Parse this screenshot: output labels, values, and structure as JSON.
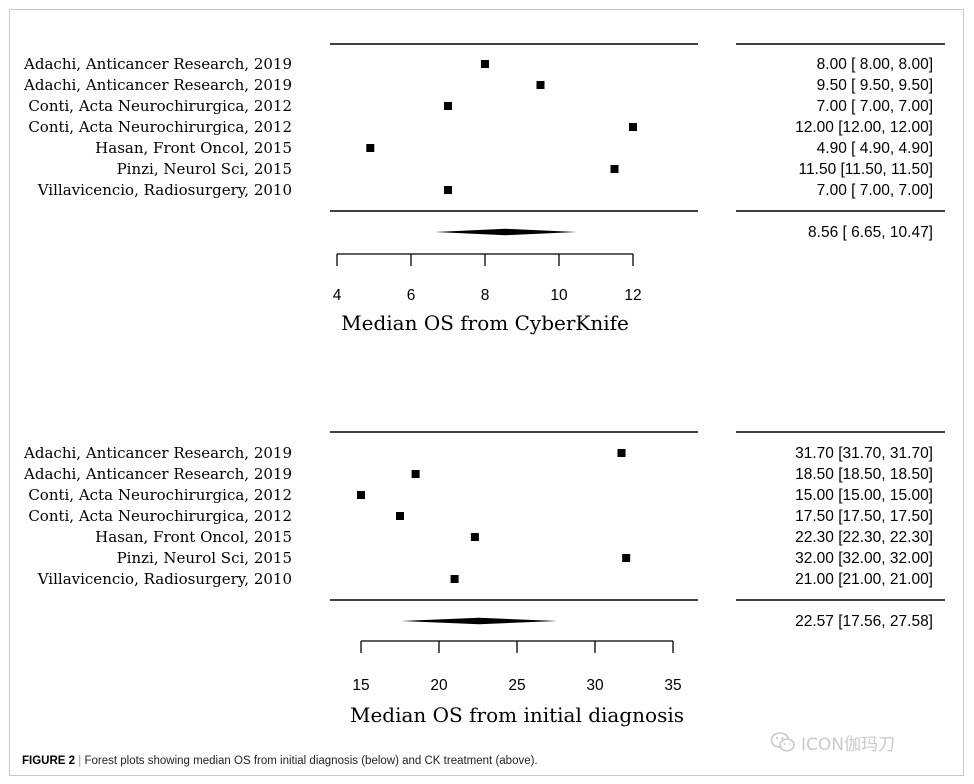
{
  "chart_data": [
    {
      "type": "forest",
      "xlabel": "Median OS from CyberKnife",
      "xlim": [
        4,
        12
      ],
      "xticks": [
        4,
        6,
        8,
        10,
        12
      ],
      "studies": [
        {
          "label": "Adachi,  Anticancer Research, 2019",
          "value": 8.0,
          "ci": [
            8.0,
            8.0
          ],
          "text": "8.00 [ 8.00,  8.00]"
        },
        {
          "label": "Adachi,  Anticancer Research, 2019",
          "value": 9.5,
          "ci": [
            9.5,
            9.5
          ],
          "text": "9.50 [ 9.50,  9.50]"
        },
        {
          "label": "Conti, Acta Neurochirurgica, 2012",
          "value": 7.0,
          "ci": [
            7.0,
            7.0
          ],
          "text": "7.00 [ 7.00,  7.00]"
        },
        {
          "label": "Conti, Acta Neurochirurgica, 2012",
          "value": 12.0,
          "ci": [
            12.0,
            12.0
          ],
          "text": "12.00 [12.00, 12.00]"
        },
        {
          "label": "Hasan,  Front Oncol, 2015",
          "value": 4.9,
          "ci": [
            4.9,
            4.9
          ],
          "text": "4.90 [ 4.90,  4.90]"
        },
        {
          "label": "Pinzi, Neurol Sci, 2015",
          "value": 11.5,
          "ci": [
            11.5,
            11.5
          ],
          "text": "11.50 [11.50, 11.50]"
        },
        {
          "label": "Villavicencio, Radiosurgery, 2010",
          "value": 7.0,
          "ci": [
            7.0,
            7.0
          ],
          "text": "7.00 [ 7.00,  7.00]"
        }
      ],
      "pooled": {
        "value": 8.56,
        "ci": [
          6.65,
          10.47
        ],
        "text": "8.56 [ 6.65, 10.47]"
      }
    },
    {
      "type": "forest",
      "xlabel": "Median OS from initial diagnosis",
      "xlim": [
        15,
        35
      ],
      "xticks": [
        15,
        20,
        25,
        30,
        35
      ],
      "studies": [
        {
          "label": "Adachi,  Anticancer Research, 2019",
          "value": 31.7,
          "ci": [
            31.7,
            31.7
          ],
          "text": "31.70 [31.70, 31.70]"
        },
        {
          "label": "Adachi,  Anticancer Research, 2019",
          "value": 18.5,
          "ci": [
            18.5,
            18.5
          ],
          "text": "18.50 [18.50, 18.50]"
        },
        {
          "label": "Conti, Acta Neurochirurgica, 2012",
          "value": 15.0,
          "ci": [
            15.0,
            15.0
          ],
          "text": "15.00 [15.00, 15.00]"
        },
        {
          "label": "Conti, Acta Neurochirurgica, 2012",
          "value": 17.5,
          "ci": [
            17.5,
            17.5
          ],
          "text": "17.50 [17.50, 17.50]"
        },
        {
          "label": "Hasan,  Front Oncol, 2015",
          "value": 22.3,
          "ci": [
            22.3,
            22.3
          ],
          "text": "22.30 [22.30, 22.30]"
        },
        {
          "label": "Pinzi, Neurol Sci, 2015",
          "value": 32.0,
          "ci": [
            32.0,
            32.0
          ],
          "text": "32.00 [32.00, 32.00]"
        },
        {
          "label": "Villavicencio, Radiosurgery, 2010",
          "value": 21.0,
          "ci": [
            21.0,
            21.0
          ],
          "text": "21.00 [21.00, 21.00]"
        }
      ],
      "pooled": {
        "value": 22.57,
        "ci": [
          17.56,
          27.58
        ],
        "text": "22.57 [17.56, 27.58]"
      }
    }
  ],
  "caption": {
    "figure": "FIGURE 2",
    "separator": "|",
    "text": "Forest plots showing median OS from initial diagnosis (below) and CK treatment (above)."
  },
  "watermark": {
    "text": "ICON伽玛刀",
    "icon": "wechat-icon"
  },
  "colors": {
    "ink": "#000000",
    "frame": "#c8c8c8",
    "watermark": "#c9c9c9"
  }
}
